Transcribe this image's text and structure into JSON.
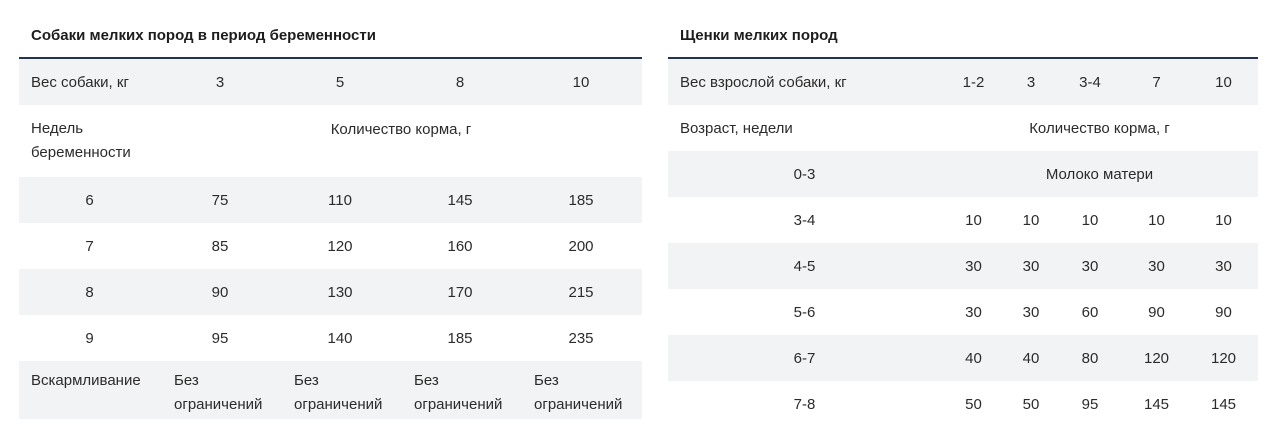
{
  "pregnancy": {
    "title": "Собаки мелких пород в период беременности",
    "weight_label": "Вес собаки, кг",
    "weights": [
      "3",
      "5",
      "8",
      "10"
    ],
    "weeks_label_1": "Недель",
    "weeks_label_2": "беременности",
    "amount_label": "Количество корма, г",
    "rows": [
      {
        "week": "6",
        "values": [
          "75",
          "110",
          "145",
          "185"
        ]
      },
      {
        "week": "7",
        "values": [
          "85",
          "120",
          "160",
          "200"
        ]
      },
      {
        "week": "8",
        "values": [
          "90",
          "130",
          "170",
          "215"
        ]
      },
      {
        "week": "9",
        "values": [
          "95",
          "140",
          "185",
          "235"
        ]
      }
    ],
    "feeding_label": "Вскармливание",
    "feeding_line1": "Без",
    "feeding_line2": "ограничений"
  },
  "puppies": {
    "title": "Щенки мелких пород",
    "weight_label": "Вес взрослой собаки, кг",
    "weights": [
      "1-2",
      "3",
      "3-4",
      "7",
      "10"
    ],
    "age_label": "Возраст, недели",
    "amount_label": "Количество корма, г",
    "milk_age": "0-3",
    "milk_label": "Молоко матери",
    "rows": [
      {
        "age": "3-4",
        "values": [
          "10",
          "10",
          "10",
          "10",
          "10"
        ]
      },
      {
        "age": "4-5",
        "values": [
          "30",
          "30",
          "30",
          "30",
          "30"
        ]
      },
      {
        "age": "5-6",
        "values": [
          "30",
          "30",
          "60",
          "90",
          "90"
        ]
      },
      {
        "age": "6-7",
        "values": [
          "40",
          "40",
          "80",
          "120",
          "120"
        ]
      },
      {
        "age": "7-8",
        "values": [
          "50",
          "50",
          "95",
          "145",
          "145"
        ]
      }
    ]
  }
}
